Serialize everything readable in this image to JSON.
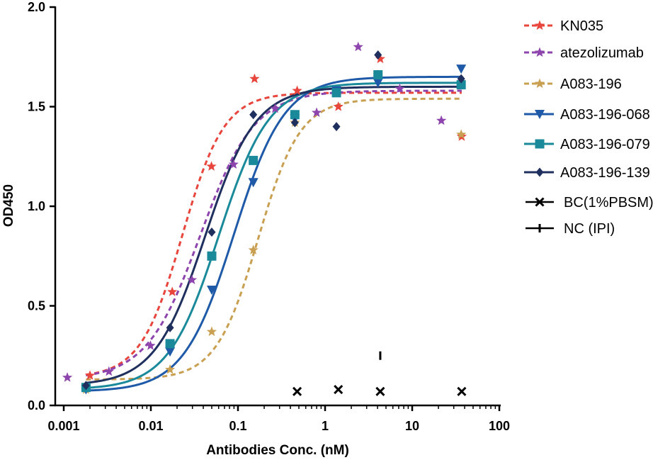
{
  "chart_data": {
    "type": "scatter",
    "title": "",
    "xlabel": "Antibodies Conc. (nM)",
    "ylabel": "OD450",
    "xscale": "log",
    "xlim": [
      0.001,
      100
    ],
    "ylim": [
      0,
      2.0
    ],
    "x_ticks": [
      0.001,
      0.01,
      0.1,
      1,
      10,
      100
    ],
    "x_tick_labels": [
      "0.001",
      "0.01",
      "0.1",
      "1",
      "10",
      "100"
    ],
    "y_ticks": [
      0,
      0.5,
      1.0,
      1.5,
      2.0
    ],
    "y_tick_labels": [
      "0.0",
      "0.5",
      "1.0",
      "1.5",
      "2.0"
    ],
    "legend_position": "right",
    "series": [
      {
        "name": "KN035",
        "color": "#e8453c",
        "marker": "star",
        "line": "dashed",
        "x": [
          0.002,
          0.0176,
          0.0496,
          0.155,
          0.478,
          1.42,
          4.3,
          37
        ],
        "y": [
          0.15,
          0.57,
          1.2,
          1.64,
          1.58,
          1.5,
          1.74,
          1.35
        ],
        "fit": {
          "bottom": 0.14,
          "top": 1.57,
          "ec50": 0.023,
          "hill": 1.8
        }
      },
      {
        "name": "atezolizumab",
        "color": "#8e44ad",
        "marker": "star",
        "line": "dashed",
        "x": [
          0.0011,
          0.0033,
          0.0099,
          0.0296,
          0.089,
          0.267,
          0.8,
          2.4,
          7.2,
          21.6
        ],
        "y": [
          0.14,
          0.17,
          0.3,
          0.63,
          1.21,
          1.49,
          1.47,
          1.8,
          1.59,
          1.43
        ],
        "fit": {
          "bottom": 0.13,
          "top": 1.58,
          "ec50": 0.037,
          "hill": 1.4
        }
      },
      {
        "name": "A083-196",
        "color": "#c9a052",
        "marker": "star",
        "line": "dashed",
        "x": [
          0.0018,
          0.0166,
          0.05,
          0.15,
          0.45,
          1.35,
          4.05,
          36.5
        ],
        "y": [
          0.08,
          0.18,
          0.37,
          0.78,
          1.42,
          1.57,
          1.66,
          1.36
        ],
        "fit": {
          "bottom": 0.13,
          "top": 1.54,
          "ec50": 0.17,
          "hill": 1.8
        }
      },
      {
        "name": "A083-196-068",
        "color": "#1e5aa8",
        "marker": "triangle-down",
        "line": "solid",
        "x": [
          0.0018,
          0.0166,
          0.05,
          0.15,
          0.45,
          1.35,
          4.05,
          36.5
        ],
        "y": [
          0.08,
          0.27,
          0.58,
          1.12,
          1.44,
          1.58,
          1.62,
          1.69
        ],
        "fit": {
          "bottom": 0.07,
          "top": 1.65,
          "ec50": 0.09,
          "hill": 1.5
        }
      },
      {
        "name": "A083-196-079",
        "color": "#1a8a9a",
        "marker": "square",
        "line": "solid",
        "x": [
          0.0018,
          0.0166,
          0.05,
          0.15,
          0.45,
          1.35,
          4.05,
          36.5
        ],
        "y": [
          0.09,
          0.31,
          0.75,
          1.23,
          1.46,
          1.57,
          1.66,
          1.61
        ],
        "fit": {
          "bottom": 0.08,
          "top": 1.62,
          "ec50": 0.06,
          "hill": 1.5
        }
      },
      {
        "name": "A083-196-139",
        "color": "#1f2f5e",
        "marker": "diamond",
        "line": "solid",
        "x": [
          0.0018,
          0.0166,
          0.05,
          0.15,
          0.45,
          1.35,
          4.05,
          36.5
        ],
        "y": [
          0.1,
          0.39,
          0.87,
          1.46,
          1.42,
          1.4,
          1.76,
          1.64
        ],
        "fit": {
          "bottom": 0.1,
          "top": 1.6,
          "ec50": 0.042,
          "hill": 1.5
        }
      },
      {
        "name": "BC(1%PBSM)",
        "color": "#000000",
        "marker": "x",
        "line": "none",
        "x": [
          0.478,
          1.42,
          4.3,
          37
        ],
        "y": [
          0.07,
          0.08,
          0.07,
          0.07
        ]
      },
      {
        "name": "NC (IPI)",
        "color": "#000000",
        "marker": "plus",
        "line": "none",
        "x": [
          4.3
        ],
        "y": [
          0.25
        ]
      }
    ]
  }
}
